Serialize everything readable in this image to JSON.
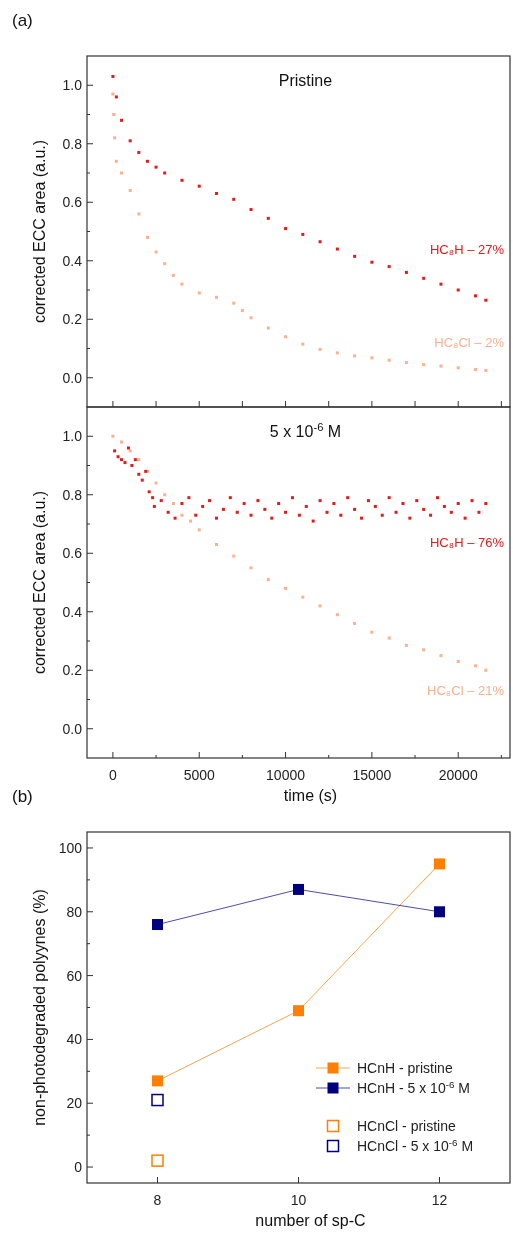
{
  "chart_data": [
    {
      "type": "scatter",
      "title": "Pristine",
      "ylabel": "corrected ECC area (a.u.)",
      "annotations": [
        "(a)"
      ],
      "marker": "square",
      "grid": false,
      "legend": false,
      "tick_labels": "y",
      "xlim": [
        -1500,
        23000
      ],
      "xticks": [
        {
          "value": 0,
          "label": null
        },
        {
          "value": 2500,
          "label": null
        },
        {
          "value": 5000,
          "label": null
        },
        {
          "value": 7500,
          "label": null
        },
        {
          "value": 10000,
          "label": null
        },
        {
          "value": 12500,
          "label": null
        },
        {
          "value": 15000,
          "label": null
        },
        {
          "value": 17500,
          "label": null
        },
        {
          "value": 20000,
          "label": null
        },
        {
          "value": 22500,
          "label": null
        }
      ],
      "ylim": [
        -0.1,
        1.1
      ],
      "yticks": [
        {
          "value": 0,
          "label": "0.0"
        },
        {
          "value": 0.1,
          "label": null
        },
        {
          "value": 0.2,
          "label": "0.2"
        },
        {
          "value": 0.3,
          "label": null
        },
        {
          "value": 0.4,
          "label": "0.4"
        },
        {
          "value": 0.5,
          "label": null
        },
        {
          "value": 0.6,
          "label": "0.6"
        },
        {
          "value": 0.7,
          "label": null
        },
        {
          "value": 0.8,
          "label": "0.8"
        },
        {
          "value": 0.9,
          "label": null
        },
        {
          "value": 1.0,
          "label": "1.0"
        }
      ],
      "series": [
        {
          "name": "HC₈H – 27%",
          "color": "#e41a1c",
          "x": [
            0,
            200,
            500,
            1000,
            1500,
            2000,
            2500,
            3000,
            4000,
            5000,
            6000,
            7000,
            8000,
            9000,
            10000,
            11000,
            12000,
            13000,
            14000,
            15000,
            16000,
            17000,
            18000,
            19000,
            20000,
            21000,
            21600
          ],
          "values": [
            1.03,
            0.96,
            0.88,
            0.81,
            0.77,
            0.74,
            0.72,
            0.7,
            0.675,
            0.655,
            0.63,
            0.61,
            0.575,
            0.545,
            0.51,
            0.49,
            0.465,
            0.44,
            0.415,
            0.395,
            0.38,
            0.36,
            0.34,
            0.32,
            0.3,
            0.28,
            0.265
          ]
        },
        {
          "name": "HC₈Cl – 2%",
          "color": "#fbb08f",
          "x": [
            0,
            50,
            100,
            200,
            500,
            1000,
            1500,
            2000,
            2500,
            3000,
            3500,
            4000,
            5000,
            6000,
            7000,
            7500,
            8000,
            9000,
            10000,
            11000,
            12000,
            13000,
            14000,
            15000,
            16000,
            17000,
            18000,
            19000,
            20000,
            21000,
            21600
          ],
          "values": [
            0.97,
            0.9,
            0.82,
            0.74,
            0.7,
            0.64,
            0.56,
            0.48,
            0.43,
            0.39,
            0.35,
            0.32,
            0.29,
            0.275,
            0.255,
            0.23,
            0.205,
            0.17,
            0.14,
            0.115,
            0.097,
            0.085,
            0.075,
            0.068,
            0.06,
            0.052,
            0.045,
            0.04,
            0.034,
            0.028,
            0.025
          ]
        }
      ]
    },
    {
      "type": "scatter",
      "title": "5 x 10$^{-6}$ M",
      "xlabel": "time (s)",
      "ylabel": "corrected ECC area (a.u.)",
      "marker": "square",
      "grid": false,
      "legend": false,
      "xlim": [
        -1500,
        23000
      ],
      "xticks": [
        {
          "value": 0,
          "label": "0"
        },
        {
          "value": 2500,
          "label": null
        },
        {
          "value": 5000,
          "label": "5000"
        },
        {
          "value": 7500,
          "label": null
        },
        {
          "value": 10000,
          "label": "10000"
        },
        {
          "value": 12500,
          "label": null
        },
        {
          "value": 15000,
          "label": "15000"
        },
        {
          "value": 17500,
          "label": null
        },
        {
          "value": 20000,
          "label": "20000"
        },
        {
          "value": 22500,
          "label": null
        }
      ],
      "ylim": [
        -0.1,
        1.1
      ],
      "yticks": [
        {
          "value": 0,
          "label": "0.0"
        },
        {
          "value": 0.1,
          "label": null
        },
        {
          "value": 0.2,
          "label": "0.2"
        },
        {
          "value": 0.3,
          "label": null
        },
        {
          "value": 0.4,
          "label": "0.4"
        },
        {
          "value": 0.5,
          "label": null
        },
        {
          "value": 0.6,
          "label": "0.6"
        },
        {
          "value": 0.7,
          "label": null
        },
        {
          "value": 0.8,
          "label": "0.8"
        },
        {
          "value": 0.9,
          "label": null
        },
        {
          "value": 1.0,
          "label": "1.0"
        }
      ],
      "series": [
        {
          "name": "HC₈Cl – 21%",
          "color": "#fbb08f",
          "x": [
            0,
            500,
            1000,
            1500,
            2000,
            2500,
            3000,
            3500,
            4000,
            4500,
            5000,
            6000,
            7000,
            8000,
            9000,
            10000,
            11000,
            12000,
            13000,
            14000,
            15000,
            16000,
            17000,
            18000,
            19000,
            20000,
            21000,
            21600
          ],
          "values": [
            1.0,
            0.98,
            0.95,
            0.92,
            0.88,
            0.84,
            0.8,
            0.77,
            0.73,
            0.71,
            0.68,
            0.63,
            0.59,
            0.55,
            0.51,
            0.48,
            0.45,
            0.42,
            0.39,
            0.36,
            0.33,
            0.31,
            0.285,
            0.27,
            0.25,
            0.23,
            0.215,
            0.2
          ]
        },
        {
          "name": "HC₈H – 76%",
          "color": "#e41a1c",
          "x": [
            100,
            300,
            500,
            700,
            900,
            1100,
            1300,
            1500,
            1700,
            1900,
            2100,
            2300,
            2400,
            2800,
            3200,
            3600,
            4000,
            4400,
            4800,
            5200,
            5600,
            6000,
            6400,
            6800,
            7200,
            7600,
            8000,
            8400,
            8800,
            9200,
            9600,
            10000,
            10400,
            10800,
            11200,
            11600,
            12000,
            12400,
            12800,
            13200,
            13600,
            14000,
            14400,
            14800,
            15200,
            15600,
            16000,
            16400,
            16800,
            17200,
            17600,
            18000,
            18400,
            18800,
            19200,
            19600,
            20000,
            20400,
            20800,
            21200,
            21600
          ],
          "values": [
            0.95,
            0.93,
            0.92,
            0.91,
            0.96,
            0.9,
            0.92,
            0.87,
            0.85,
            0.88,
            0.81,
            0.79,
            0.76,
            0.78,
            0.74,
            0.72,
            0.77,
            0.79,
            0.73,
            0.76,
            0.78,
            0.72,
            0.75,
            0.79,
            0.74,
            0.77,
            0.73,
            0.78,
            0.75,
            0.72,
            0.77,
            0.74,
            0.79,
            0.73,
            0.76,
            0.71,
            0.78,
            0.74,
            0.77,
            0.73,
            0.79,
            0.75,
            0.72,
            0.78,
            0.76,
            0.73,
            0.79,
            0.74,
            0.77,
            0.72,
            0.78,
            0.75,
            0.73,
            0.79,
            0.76,
            0.74,
            0.77,
            0.72,
            0.78,
            0.74,
            0.77
          ]
        }
      ]
    },
    {
      "type": "line",
      "xlabel": "number of sp-C",
      "ylabel": "non-photodegraded polyynes (%)",
      "annotations": [
        "(b)"
      ],
      "marker": "square",
      "grid": false,
      "legend": "bottom right",
      "xlim": [
        7,
        13
      ],
      "xticks": [
        8,
        10,
        12
      ],
      "ylim": [
        -5,
        105
      ],
      "yticks": [
        0,
        {
          "value": 10,
          "label": null
        },
        20,
        {
          "value": 30,
          "label": null
        },
        40,
        {
          "value": 50,
          "label": null
        },
        60,
        {
          "value": 70,
          "label": null
        },
        80,
        {
          "value": 90,
          "label": null
        },
        100
      ],
      "series": [
        {
          "name": "HCnH - pristine",
          "color": "#ff7f00",
          "x": [
            8,
            10,
            12
          ],
          "values": [
            27,
            49,
            95
          ]
        },
        {
          "name": "HCnH - 5 x 10$^{-6}$ M",
          "color": "#00007f",
          "x": [
            8,
            10,
            12
          ],
          "values": [
            76,
            87,
            80
          ]
        },
        {
          "name": "HCnCl - pristine",
          "type": "scatter",
          "color": "#ff7f00",
          "x": [
            8
          ],
          "values": [
            2
          ]
        },
        {
          "name": "HCnCl - 5 x 10$^{-6}$ M",
          "type": "scatter",
          "color": "#00007f",
          "x": [
            8
          ],
          "values": [
            21
          ]
        }
      ]
    }
  ]
}
